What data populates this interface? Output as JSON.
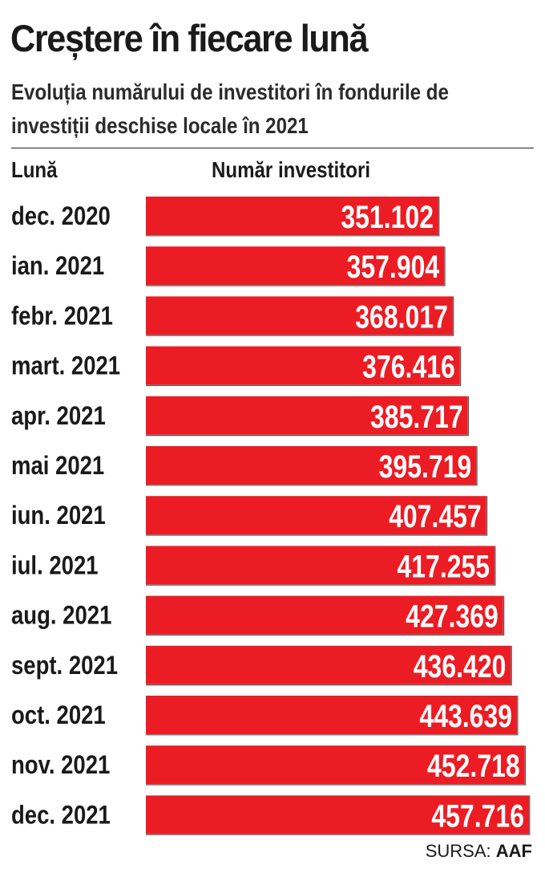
{
  "header": {
    "title": "Creștere în fiecare lună",
    "subtitle_line1": "Evoluția numărului de investitori în fondurile de",
    "subtitle_line2": "investiții deschise locale în 2021"
  },
  "columns": {
    "month": "Lună",
    "value": "Număr investitori"
  },
  "source": {
    "prefix": "SURSA:",
    "name": "AAF"
  },
  "colors": {
    "bar": "#ec1c24",
    "bar_edge": "#555555",
    "text": "#1a1a1a",
    "value_text": "#ffffff"
  },
  "chart_data": {
    "type": "bar",
    "orientation": "horizontal",
    "title": "Creștere în fiecare lună",
    "subtitle": "Evoluția numărului de investitori în fondurile de investiții deschise locale în 2021",
    "xlabel": "Număr investitori",
    "ylabel": "Lună",
    "categories": [
      "dec. 2020",
      "ian. 2021",
      "febr. 2021",
      "mart. 2021",
      "apr. 2021",
      "mai 2021",
      "iun. 2021",
      "iul. 2021",
      "aug. 2021",
      "sept. 2021",
      "oct. 2021",
      "nov. 2021",
      "dec. 2021"
    ],
    "values": [
      351102,
      357904,
      368017,
      376416,
      385717,
      395719,
      407457,
      417255,
      427369,
      436420,
      443639,
      452718,
      457716
    ],
    "value_labels": [
      "351.102",
      "357.904",
      "368.017",
      "376.416",
      "385.717",
      "395.719",
      "407.457",
      "417.255",
      "427.369",
      "436.420",
      "443.639",
      "452.718",
      "457.716"
    ],
    "grid": false,
    "legend": "none"
  }
}
